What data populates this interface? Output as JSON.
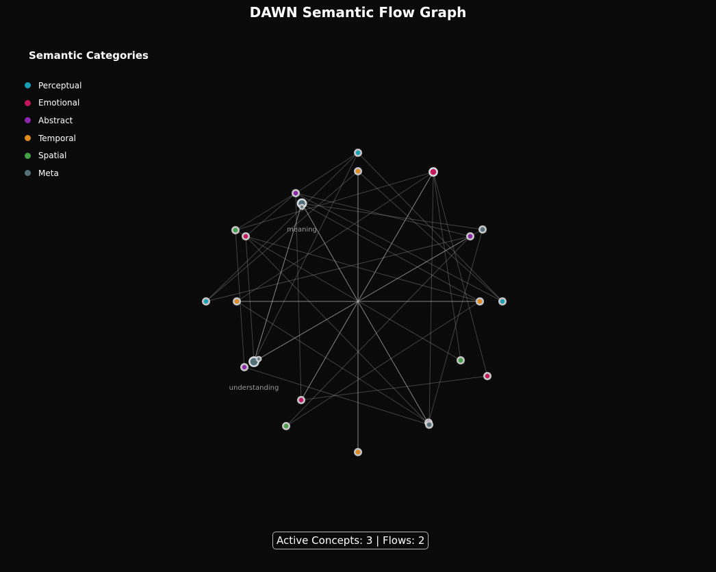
{
  "title": "DAWN Semantic Flow Graph",
  "legend": {
    "title": "Semantic Categories",
    "items": [
      {
        "key": "perceptual",
        "label": "Perceptual",
        "color": "#17a0b5"
      },
      {
        "key": "emotional",
        "label": "Emotional",
        "color": "#c2185b"
      },
      {
        "key": "abstract",
        "label": "Abstract",
        "color": "#8e24aa"
      },
      {
        "key": "temporal",
        "label": "Temporal",
        "color": "#e08a1e"
      },
      {
        "key": "spatial",
        "label": "Spatial",
        "color": "#43a047"
      },
      {
        "key": "meta",
        "label": "Meta",
        "color": "#546e7a"
      }
    ]
  },
  "labels": {
    "meaning": "meaning",
    "understanding": "understanding"
  },
  "status": "Active Concepts: 3 | Flows: 2"
}
